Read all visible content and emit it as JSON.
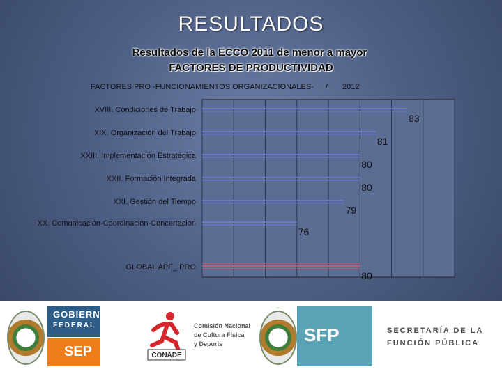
{
  "slide": {
    "title": "RESULTADOS",
    "subtitle_line1": "Resultados  de la ECCO 2011 de menor a mayor",
    "subtitle_line2": "FACTORES DE PRODUCTIVIDAD",
    "chart_header_left": "FACTORES  PRO -FUNCIONAMIENTOS ORGANIZACIONALES-",
    "chart_header_sep": "/",
    "chart_header_right": "2012"
  },
  "chart_data": {
    "type": "bar",
    "orientation": "horizontal",
    "categories": [
      "XVIII. Condiciones de Trabajo",
      "XIX. Organización del Trabajo",
      "XXIII. Implementación Estratégica",
      "XXII. Formación Integrada",
      "XXI. Gestión del Tiempo",
      "XX. Comunicación-Coordinación-Concertación",
      "GLOBAL APF_ PRO"
    ],
    "values": [
      83,
      81,
      80,
      80,
      79,
      76,
      80
    ],
    "value_labels": [
      "83",
      "81",
      "80",
      "80",
      "79",
      "76",
      "80"
    ],
    "xlim": [
      70,
      86
    ],
    "grid": true,
    "bar_color": "#6f78c8",
    "global_bar_color": "#c05a7a"
  },
  "footer": {
    "gob_line1": "GOBIERNO",
    "gob_line2": "FEDERAL",
    "sep": "SEP",
    "conade_logo_text": "CONADE",
    "conade_line1": "Comisión Nacional",
    "conade_line2": "de Cultura Física",
    "conade_line3": "y Deporte",
    "sfp": "SFP",
    "sfp_line1": "SECRETARÍA DE LA",
    "sfp_line2": "FUNCIÓN PÚBLICA"
  }
}
